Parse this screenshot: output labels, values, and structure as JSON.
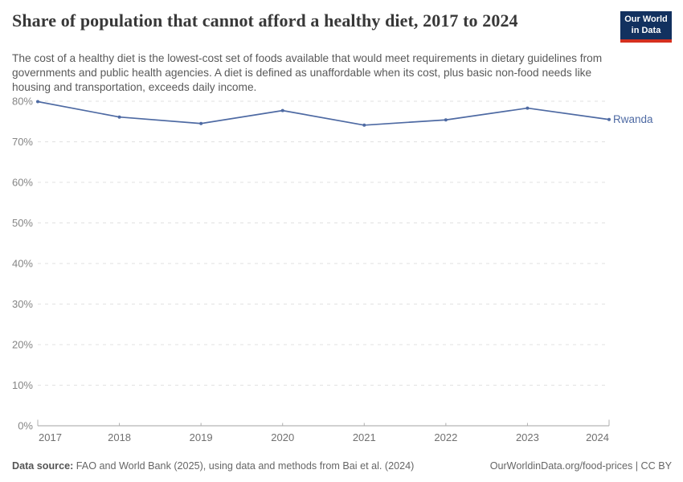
{
  "header": {
    "title": "Share of population that cannot afford a healthy diet, 2017 to 2024",
    "subtitle": "The cost of a healthy diet is the lowest-cost set of foods available that would meet requirements in dietary guidelines from governments and public health agencies. A diet is defined as unaffordable when its cost, plus basic non-food needs like housing and transportation, exceeds daily income.",
    "logo": {
      "line1": "Our World",
      "line2": "in Data",
      "bg_color": "#12315F",
      "accent_color": "#D5301F"
    }
  },
  "chart_data": {
    "type": "line",
    "title": "Share of population that cannot afford a healthy diet, 2017 to 2024",
    "x": [
      2017,
      2018,
      2019,
      2020,
      2021,
      2022,
      2023,
      2024
    ],
    "series": [
      {
        "name": "Rwanda",
        "color": "#4E6AA3",
        "values": [
          79.9,
          76.1,
          74.5,
          77.7,
          74.1,
          75.4,
          78.3,
          75.5
        ]
      }
    ],
    "ylim": [
      0,
      80
    ],
    "yticks": [
      0,
      10,
      20,
      30,
      40,
      50,
      60,
      70,
      80
    ],
    "ytick_suffix": "%",
    "xlabel": "",
    "ylabel": "",
    "grid": "horizontal-dashed",
    "legend_position": "end-of-line-label",
    "axis_colors": {
      "grid_line": "#e1e1e1",
      "axis_line": "#a3a3a3",
      "tick_mark": "#b0b0b0",
      "y_label": "#858585",
      "x_label": "#707070"
    }
  },
  "footer": {
    "source_label": "Data source:",
    "source_text": "FAO and World Bank (2025), using data and methods from Bai et al. (2024)",
    "right_text": "OurWorldinData.org/food-prices | CC BY"
  }
}
